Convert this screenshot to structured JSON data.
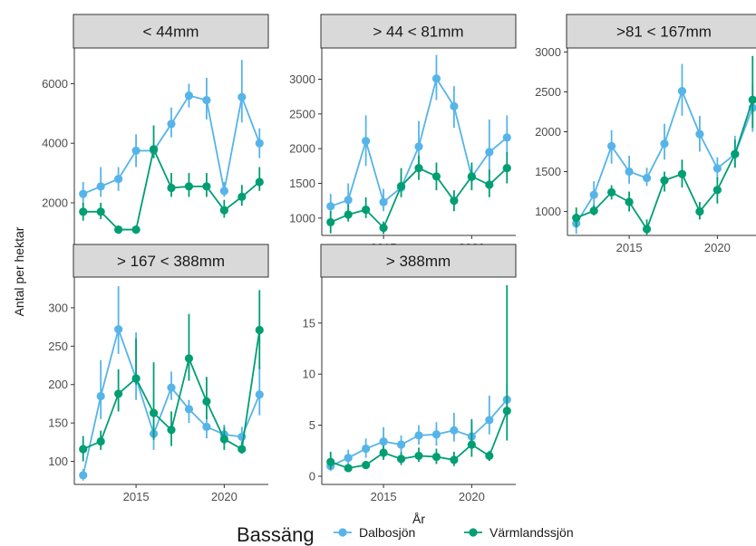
{
  "chart_data": {
    "type": "line",
    "xlabel": "År",
    "ylabel": "Antal per hektar",
    "grid": false,
    "legend": {
      "title": "Bassäng",
      "position": "bottom",
      "entries": [
        "Dalbosjön",
        "Värmlandssjön"
      ]
    },
    "colors": {
      "Dalbosjön": "#56b4e9",
      "Värmlandssjön": "#009e73"
    },
    "x": [
      2012,
      2013,
      2014,
      2015,
      2016,
      2017,
      2018,
      2019,
      2020,
      2021,
      2022
    ],
    "x_ticks": [
      "2015",
      "2020"
    ],
    "xlim": [
      2011.5,
      2022.5
    ],
    "panels": [
      {
        "title": "< 44mm",
        "ylim": [
          600,
          7200
        ],
        "y_ticks": [
          "2000",
          "4000",
          "6000"
        ],
        "series": [
          {
            "name": "Dalbosjön",
            "values": [
              2300,
              2550,
              2800,
              3750,
              3750,
              4650,
              5600,
              5450,
              2400,
              5550,
              4000
            ],
            "error_low": [
              1900,
              2200,
              2400,
              3200,
              3500,
              4200,
              5200,
              4800,
              2200,
              4700,
              3500
            ],
            "error_high": [
              2700,
              3200,
              3200,
              4300,
              4000,
              5200,
              6000,
              6200,
              2700,
              6800,
              4500
            ]
          },
          {
            "name": "Värmlandssjön",
            "values": [
              1700,
              1700,
              1100,
              1100,
              3800,
              2500,
              2550,
              2550,
              1750,
              2200,
              2700
            ],
            "error_low": [
              1400,
              1450,
              1000,
              1000,
              3500,
              2200,
              2200,
              2200,
              1500,
              1900,
              2400
            ],
            "error_high": [
              2000,
              2000,
              1150,
              1150,
              4600,
              3000,
              3000,
              3000,
              2100,
              2600,
              3200
            ]
          }
        ]
      },
      {
        "title": "> 44 < 81mm",
        "ylim": [
          750,
          3450
        ],
        "y_ticks": [
          "1000",
          "1500",
          "2000",
          "2500",
          "3000"
        ],
        "series": [
          {
            "name": "Dalbosjön",
            "values": [
              1170,
              1260,
              2110,
              1230,
              1440,
              2030,
              3010,
              2610,
              1590,
              1950,
              2160
            ],
            "error_low": [
              1050,
              1100,
              1750,
              1100,
              1350,
              1700,
              2700,
              2300,
              1450,
              1600,
              1900
            ],
            "error_high": [
              1350,
              1500,
              2480,
              1420,
              1600,
              2400,
              3350,
              2900,
              1750,
              2420,
              2480
            ]
          },
          {
            "name": "Värmlandssjön",
            "values": [
              940,
              1050,
              1120,
              860,
              1460,
              1720,
              1600,
              1250,
              1600,
              1480,
              1720
            ],
            "error_low": [
              780,
              950,
              1000,
              770,
              1300,
              1550,
              1400,
              1100,
              1400,
              1300,
              1500
            ],
            "error_high": [
              1100,
              1200,
              1300,
              950,
              1720,
              1900,
              1800,
              1400,
              1800,
              1700,
              1950
            ]
          }
        ]
      },
      {
        "title": ">81 < 167mm",
        "ylim": [
          700,
          3050
        ],
        "y_ticks": [
          "1000",
          "1500",
          "2000",
          "2500",
          "3000"
        ],
        "series": [
          {
            "name": "Dalbosjön",
            "values": [
              850,
              1210,
              1820,
              1500,
              1420,
              1850,
              2510,
              1970,
              1540,
              1720,
              2300
            ],
            "error_low": [
              720,
              1050,
              1600,
              1350,
              1320,
              1650,
              2200,
              1750,
              1400,
              1550,
              2000
            ],
            "error_high": [
              980,
              1380,
              2020,
              1700,
              1550,
              2100,
              2850,
              2200,
              1680,
              1950,
              2600
            ]
          },
          {
            "name": "Värmlandssjön",
            "values": [
              920,
              1010,
              1240,
              1120,
              780,
              1390,
              1470,
              1000,
              1270,
              1720,
              2400
            ],
            "error_low": [
              800,
              950,
              1150,
              1000,
              650,
              1250,
              1300,
              900,
              1100,
              1550,
              2050
            ],
            "error_high": [
              1050,
              1080,
              1330,
              1250,
              900,
              1500,
              1650,
              1120,
              1430,
              1900,
              2950
            ]
          }
        ]
      },
      {
        "title": "> 167 < 388mm",
        "ylim": [
          70,
          340
        ],
        "y_ticks": [
          "100",
          "150",
          "200",
          "250",
          "300"
        ],
        "series": [
          {
            "name": "Dalbosjön",
            "values": [
              82,
              185,
              272,
              208,
              136,
              196,
              168,
              145,
              135,
              132,
              187
            ],
            "error_low": [
              75,
              155,
              240,
              180,
              115,
              180,
              150,
              130,
              122,
              120,
              160
            ],
            "error_high": [
              90,
              232,
              328,
              268,
              155,
              217,
              180,
              160,
              148,
              145,
              223
            ]
          },
          {
            "name": "Värmlandssjön",
            "values": [
              116,
              126,
              188,
              208,
              163,
              141,
              234,
              178,
              129,
              116,
              271
            ],
            "error_low": [
              100,
              115,
              165,
              200,
              128,
              120,
              205,
              155,
              115,
              110,
              220
            ],
            "error_high": [
              133,
              140,
              220,
              260,
              229,
              165,
              292,
              210,
              145,
              125,
              323
            ]
          }
        ]
      },
      {
        "title": "> 388mm",
        "ylim": [
          -0.8,
          19.5
        ],
        "y_ticks": [
          "0",
          "5",
          "10",
          "15"
        ],
        "series": [
          {
            "name": "Dalbosjön",
            "values": [
              1.0,
              1.8,
              2.7,
              3.4,
              3.1,
              4.0,
              4.1,
              4.5,
              3.9,
              5.5,
              7.5
            ],
            "error_low": [
              0.5,
              1.2,
              1.8,
              2.3,
              2.4,
              3.1,
              3.0,
              3.4,
              2.8,
              4.1,
              5.5
            ],
            "error_high": [
              1.6,
              2.6,
              3.7,
              4.8,
              4.0,
              5.0,
              5.3,
              6.2,
              5.3,
              7.9,
              9.0
            ]
          },
          {
            "name": "Värmlandssjön",
            "values": [
              1.4,
              0.8,
              1.1,
              2.3,
              1.7,
              2.0,
              1.9,
              1.6,
              3.1,
              2.0,
              6.4
            ],
            "error_low": [
              0.7,
              0.5,
              0.8,
              1.6,
              1.1,
              1.4,
              1.2,
              1.0,
              1.9,
              1.5,
              3.5
            ],
            "error_high": [
              2.4,
              1.2,
              1.5,
              3.0,
              2.4,
              2.8,
              2.7,
              2.4,
              5.6,
              2.5,
              18.7
            ]
          }
        ]
      }
    ]
  }
}
